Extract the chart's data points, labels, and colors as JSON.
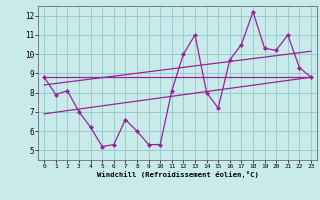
{
  "x_data": [
    0,
    1,
    2,
    3,
    4,
    5,
    6,
    7,
    8,
    9,
    10,
    11,
    12,
    13,
    14,
    15,
    16,
    17,
    18,
    19,
    20,
    21,
    22,
    23
  ],
  "y_main": [
    8.8,
    7.9,
    8.1,
    7.0,
    6.2,
    5.2,
    5.3,
    6.6,
    6.0,
    5.3,
    5.3,
    8.1,
    10.0,
    11.0,
    8.0,
    7.2,
    9.7,
    10.5,
    12.2,
    10.3,
    10.2,
    11.0,
    9.3,
    8.8
  ],
  "trend1_x": [
    0,
    23
  ],
  "trend1_y": [
    8.8,
    8.8
  ],
  "trend2_x": [
    0,
    23
  ],
  "trend2_y": [
    6.9,
    8.8
  ],
  "trend3_x": [
    0,
    23
  ],
  "trend3_y": [
    8.4,
    10.15
  ],
  "line_color": "#992299",
  "bg_color": "#c8eaea",
  "grid_color": "#99cccc",
  "xlim": [
    -0.5,
    23.5
  ],
  "ylim": [
    4.5,
    12.5
  ],
  "yticks": [
    5,
    6,
    7,
    8,
    9,
    10,
    11,
    12
  ],
  "xticks": [
    0,
    1,
    2,
    3,
    4,
    5,
    6,
    7,
    8,
    9,
    10,
    11,
    12,
    13,
    14,
    15,
    16,
    17,
    18,
    19,
    20,
    21,
    22,
    23
  ],
  "xlabel": "Windchill (Refroidissement éolien,°C)",
  "marker": "D",
  "markersize": 2.5
}
